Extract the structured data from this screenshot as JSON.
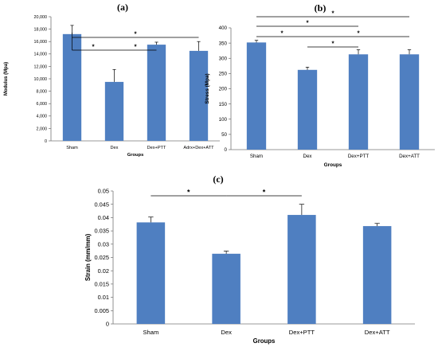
{
  "chart_data": [
    {
      "panel_label": "(a)",
      "type": "bar",
      "categories": [
        "Sham",
        "Dex",
        "Dex+PTT",
        "Adrx+Dex+ATT"
      ],
      "values": [
        17200,
        9500,
        15500,
        14500
      ],
      "errors": [
        1400,
        2000,
        400,
        1500
      ],
      "xlabel": "Groups",
      "ylabel": "Modulus (Mpa)",
      "ylim": [
        0,
        20000
      ],
      "yticks": [
        "0",
        "2,000",
        "4,000",
        "6,000",
        "8,000",
        "10,000",
        "12,000",
        "14,000",
        "16,000",
        "18,000",
        "20,000"
      ],
      "bar_color": "#4f7fc1",
      "significance": [
        {
          "from": 0,
          "to": 1,
          "label": "*"
        },
        {
          "from": 1,
          "to": 2,
          "label": "*"
        },
        {
          "from": 0,
          "to": 3,
          "label": "*"
        }
      ]
    },
    {
      "panel_label": "(b)",
      "type": "bar",
      "categories": [
        "Sham",
        "Dex",
        "Dex+PTT",
        "Dex+ATT"
      ],
      "values": [
        352,
        262,
        313,
        313
      ],
      "errors": [
        7,
        9,
        15,
        15
      ],
      "xlabel": "Groups",
      "ylabel": "Stress (Mpa)",
      "ylim": [
        0,
        400
      ],
      "yticks": [
        "0",
        "50",
        "100",
        "150",
        "200",
        "250",
        "300",
        "350",
        "400"
      ],
      "bar_color": "#4f7fc1",
      "significance": [
        {
          "from": 0,
          "to": 1,
          "label": "*"
        },
        {
          "from": 1,
          "to": 2,
          "label": "*"
        },
        {
          "from": 0,
          "to": 2,
          "label": "*"
        },
        {
          "from": 1,
          "to": 3,
          "label": "*"
        },
        {
          "from": 0,
          "to": 3,
          "label": "*"
        }
      ]
    },
    {
      "panel_label": "(c)",
      "type": "bar",
      "categories": [
        "Sham",
        "Dex",
        "Dex+PTT",
        "Dex+ATT"
      ],
      "values": [
        0.0382,
        0.0264,
        0.041,
        0.0368
      ],
      "errors": [
        0.002,
        0.001,
        0.004,
        0.001
      ],
      "xlabel": "Groups",
      "ylabel": "Strain (mm/mm)",
      "ylim": [
        0,
        0.05
      ],
      "yticks": [
        "0",
        "0.005",
        "0.01",
        "0.015",
        "0.02",
        "0.025",
        "0.03",
        "0.035",
        "0.04",
        "0.045",
        "0.05"
      ],
      "bar_color": "#4f7fc1",
      "significance": [
        {
          "from": 0,
          "to": 1,
          "label": "*"
        },
        {
          "from": 1,
          "to": 2,
          "label": "*"
        }
      ]
    }
  ]
}
